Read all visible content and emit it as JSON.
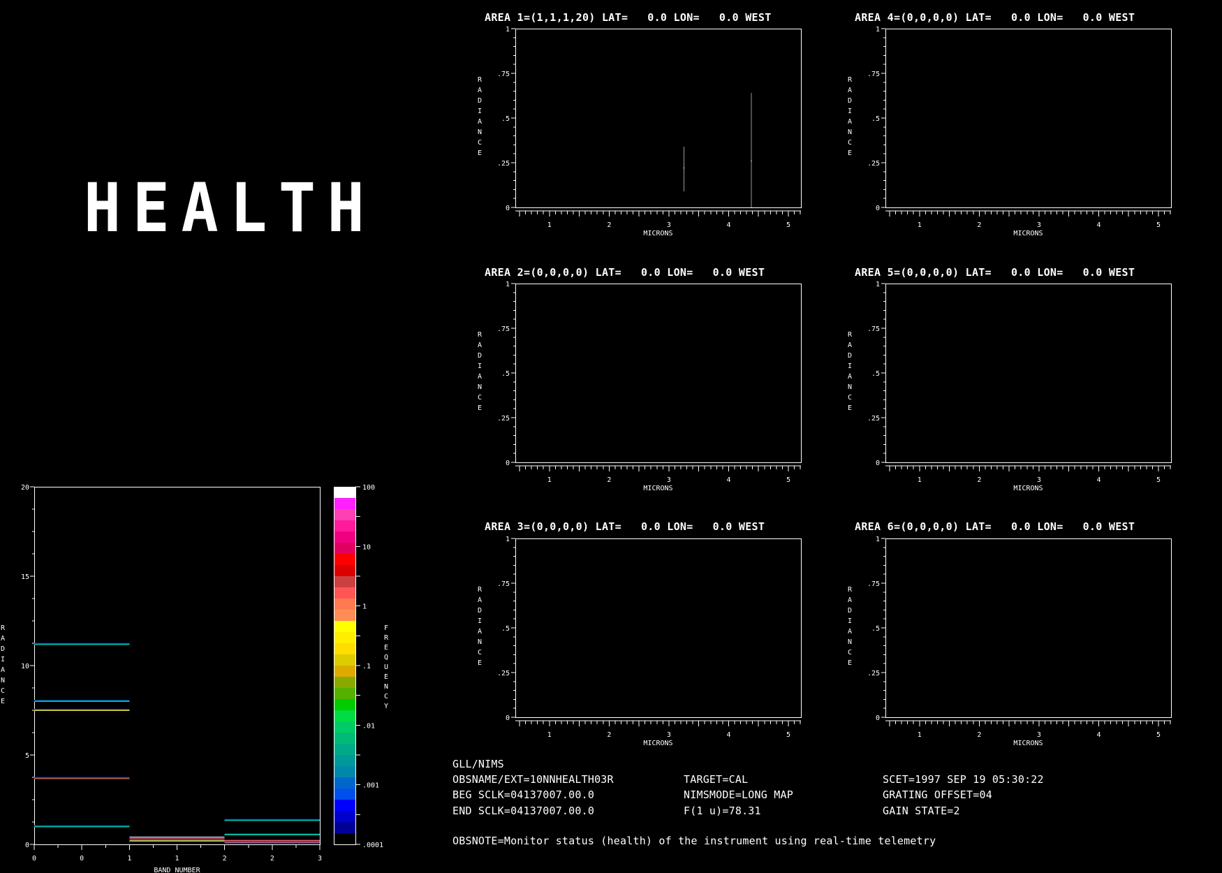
{
  "banner": "HEALTH",
  "areas": [
    {
      "title": "AREA 1=(1,1,1,20) LAT=   0.0 LON=   0.0 WEST",
      "spikes": [
        {
          "x": 3.25,
          "low": 0.09,
          "high": 0.34,
          "mark": 0.22
        },
        {
          "x": 4.38,
          "low": 0.0,
          "high": 0.64,
          "mark": 0.26
        }
      ]
    },
    {
      "title": "AREA 2=(0,0,0,0) LAT=   0.0 LON=   0.0 WEST",
      "spikes": []
    },
    {
      "title": "AREA 3=(0,0,0,0) LAT=   0.0 LON=   0.0 WEST",
      "spikes": []
    },
    {
      "title": "AREA 4=(0,0,0,0) LAT=   0.0 LON=   0.0 WEST",
      "spikes": []
    },
    {
      "title": "AREA 5=(0,0,0,0) LAT=   0.0 LON=   0.0 WEST",
      "spikes": []
    },
    {
      "title": "AREA 6=(0,0,0,0) LAT=   0.0 LON=   0.0 WEST",
      "spikes": []
    }
  ],
  "area_axes": {
    "xlabel": "MICRONS",
    "ylabel": "RADIANCE",
    "xlim": [
      0.43,
      5.21
    ],
    "ylim": [
      0,
      1
    ],
    "xticks": [
      "1",
      "2",
      "3",
      "4",
      "5"
    ],
    "yticks": [
      {
        "v": 0,
        "l": "0"
      },
      {
        "v": 0.25,
        "l": ".25"
      },
      {
        "v": 0.5,
        "l": ".5"
      },
      {
        "v": 0.75,
        "l": ".75"
      },
      {
        "v": 1,
        "l": "1"
      }
    ]
  },
  "chart_data": {
    "type": "heatmap",
    "xlabel": "BAND NUMBER",
    "ylabel": "RADIANCE",
    "colorbar_label": "FREQUENCY",
    "xlim": [
      0,
      3
    ],
    "ylim": [
      0,
      20
    ],
    "xtick_labels": [
      "0",
      "0",
      "1",
      "1",
      "2",
      "2",
      "3"
    ],
    "ytick_labels": [
      "0",
      "5",
      "10",
      "15",
      "20"
    ],
    "colorbar_ticks": [
      "100",
      "10",
      "1",
      ".1",
      ".01",
      ".001",
      ".0001"
    ],
    "colorbar_scale": "log",
    "colorbar_colors": [
      "#ffffff",
      "#ff20ff",
      "#ff40b4",
      "#ff1a9a",
      "#f00080",
      "#e00060",
      "#ff0000",
      "#dd0000",
      "#cc4040",
      "#ff5555",
      "#ff7a50",
      "#ff8c55",
      "#ffff00",
      "#ffee00",
      "#ffdd00",
      "#ddcc00",
      "#ddaa00",
      "#88aa00",
      "#55b000",
      "#00cc00",
      "#00dd44",
      "#00cc66",
      "#00bb77",
      "#00aa88",
      "#009999",
      "#0088aa",
      "#0066cc",
      "#0050ee",
      "#0000ff",
      "#0000cc",
      "#000099",
      "#000000"
    ],
    "segments": [
      {
        "x0": 0,
        "x1": 1,
        "y": 11.2,
        "color": "#00b8a0"
      },
      {
        "x0": 0,
        "x1": 1,
        "y": 8.0,
        "color": "#00b8a0"
      },
      {
        "x0": 0,
        "x1": 1,
        "y": 7.5,
        "color": "#c8c040"
      },
      {
        "x0": 0,
        "x1": 1,
        "y": 3.7,
        "color": "#b06050"
      },
      {
        "x0": 0,
        "x1": 1,
        "y": 1.0,
        "color": "#00b8a0"
      },
      {
        "x0": 1,
        "x1": 2,
        "y": 0.4,
        "color": "#ddcc00"
      },
      {
        "x0": 1,
        "x1": 2,
        "y": 0.3,
        "color": "#ff4020"
      },
      {
        "x0": 1,
        "x1": 2,
        "y": 0.2,
        "color": "#c8c040"
      },
      {
        "x0": 2,
        "x1": 3,
        "y": 1.35,
        "color": "#00b8a0"
      },
      {
        "x0": 2,
        "x1": 3,
        "y": 0.55,
        "color": "#00b8a0"
      },
      {
        "x0": 2,
        "x1": 3,
        "y": 0.2,
        "color": "#ff6040"
      },
      {
        "x0": 2,
        "x1": 3,
        "y": 0.1,
        "color": "#b06080"
      }
    ]
  },
  "info": {
    "instrument": "GLL/NIMS",
    "obsname": "OBSNAME/EXT=10NNHEALTH03R",
    "beg_sclk": "BEG SCLK=04137007.00.0",
    "end_sclk": "END SCLK=04137007.00.0",
    "target": "TARGET=CAL",
    "nimsmode": "NIMSMODE=LONG MAP",
    "f1u": "F(1 u)=78.31",
    "scet": "SCET=1997 SEP 19 05:30:22",
    "grating": "GRATING OFFSET=04",
    "gain": "GAIN STATE=2",
    "obsnote": "OBSNOTE=Monitor status (health) of the instrument using real-time telemetry"
  }
}
